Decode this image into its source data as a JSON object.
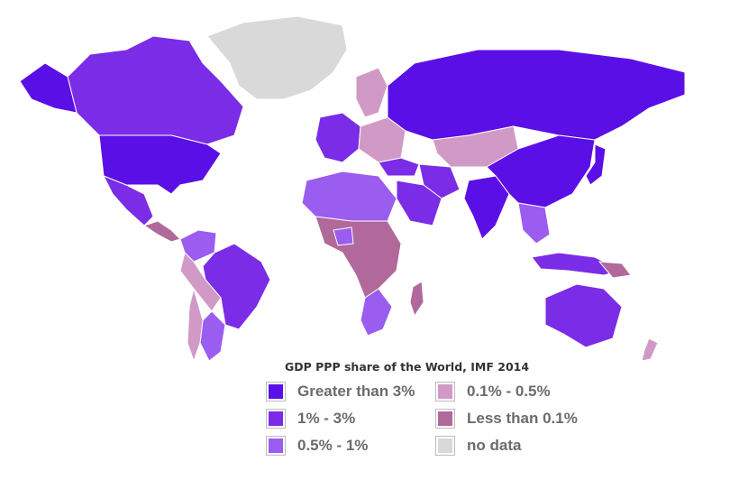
{
  "title": "GDP PPP share of the World, IMF 2014",
  "colors": {
    "greater_3": "#5a0fe6",
    "one_3": "#7a2ce6",
    "half_1": "#9b5cf0",
    "tenth_half": "#d19ac6",
    "less_tenth": "#b0699a",
    "no_data": "#d9d9d9"
  },
  "legend": [
    {
      "key": "greater_3",
      "label": "Greater than 3%"
    },
    {
      "key": "one_3",
      "label": "1% - 3%"
    },
    {
      "key": "half_1",
      "label": "0.5% - 1%"
    },
    {
      "key": "tenth_half",
      "label": "0.1% - 0.5%"
    },
    {
      "key": "less_tenth",
      "label": "Less than 0.1%"
    },
    {
      "key": "no_data",
      "label": "no data"
    }
  ]
}
